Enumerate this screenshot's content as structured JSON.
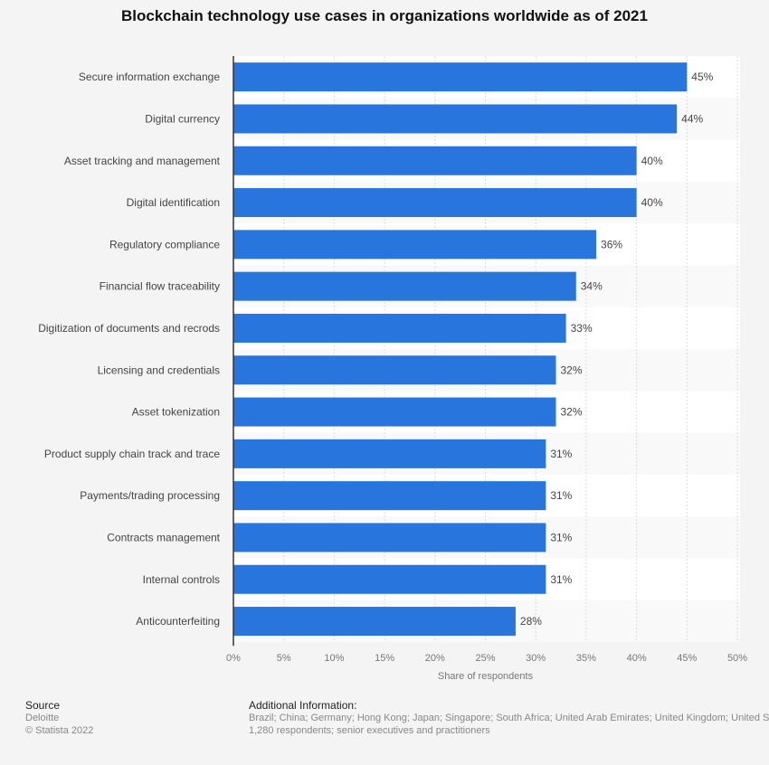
{
  "chart_data": {
    "type": "bar",
    "orientation": "horizontal",
    "title": "Blockchain technology use cases in organizations worldwide as of 2021",
    "xlabel": "Share of respondents",
    "ylabel": "",
    "xlim": [
      0,
      50
    ],
    "ticks": [
      "0%",
      "5%",
      "10%",
      "15%",
      "20%",
      "25%",
      "30%",
      "35%",
      "40%",
      "45%",
      "50%"
    ],
    "categories": [
      "Secure information exchange",
      "Digital currency",
      "Asset tracking and management",
      "Digital identification",
      "Regulatory compliance",
      "Financial flow traceability",
      "Digitization of documents and recrods",
      "Licensing and credentials",
      "Asset tokenization",
      "Product supply chain track and trace",
      "Payments/trading processing",
      "Contracts management",
      "Internal controls",
      "Anticounterfeiting"
    ],
    "values": [
      45,
      44,
      40,
      40,
      36,
      34,
      33,
      32,
      32,
      31,
      31,
      31,
      31,
      28
    ],
    "data_labels": [
      "45%",
      "44%",
      "40%",
      "40%",
      "36%",
      "34%",
      "33%",
      "32%",
      "32%",
      "31%",
      "31%",
      "31%",
      "31%",
      "28%"
    ],
    "grid": true,
    "bar_color": "#2876dd"
  },
  "footer": {
    "source_label": "Source",
    "source": "Deloitte",
    "copyright": "© Statista 2022",
    "info_label": "Additional Information:",
    "info_line1": "Brazil; China; Germany; Hong Kong; Japan; Singapore; South Africa; United Arab Emirates; United Kingdom; United States",
    "info_line2": "1,280 respondents; senior executives and practitioners"
  }
}
